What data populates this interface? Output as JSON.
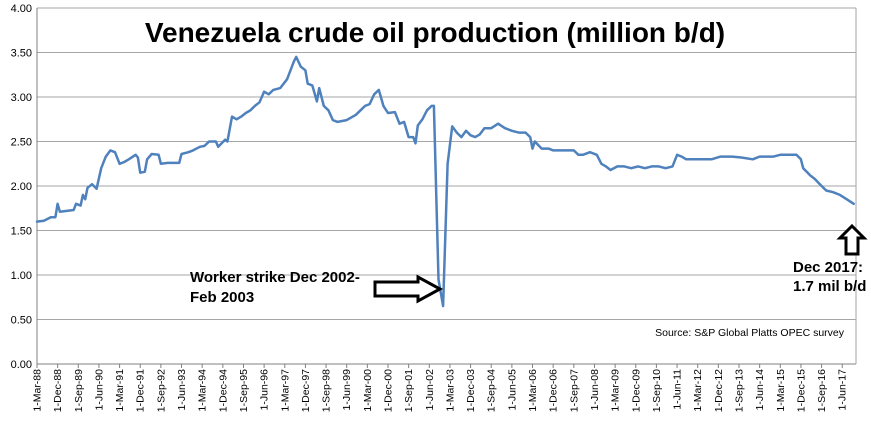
{
  "chart_data": {
    "type": "line",
    "title": "Venezuela crude oil production (million b/d)",
    "xlabel": "",
    "ylabel": "",
    "ylim": [
      0,
      4
    ],
    "yticks": [
      "0.00",
      "0.50",
      "1.00",
      "1.50",
      "2.00",
      "2.50",
      "3.00",
      "3.50",
      "4.00"
    ],
    "xlim": [
      "1988-03",
      "2017-12"
    ],
    "xticks": [
      "1-Mar-88",
      "1-Dec-88",
      "1-Sep-89",
      "1-Jun-90",
      "1-Mar-91",
      "1-Dec-91",
      "1-Sep-92",
      "1-Jun-93",
      "1-Mar-94",
      "1-Dec-94",
      "1-Sep-95",
      "1-Jun-96",
      "1-Mar-97",
      "1-Dec-97",
      "1-Sep-98",
      "1-Jun-99",
      "1-Mar-00",
      "1-Dec-00",
      "1-Sep-01",
      "1-Jun-02",
      "1-Mar-03",
      "1-Dec-03",
      "1-Sep-04",
      "1-Jun-05",
      "1-Mar-06",
      "1-Dec-06",
      "1-Sep-07",
      "1-Jun-08",
      "1-Mar-09",
      "1-Dec-09",
      "1-Sep-10",
      "1-Jun-11",
      "1-Mar-12",
      "1-Dec-12",
      "1-Sep-13",
      "1-Jun-14",
      "1-Mar-15",
      "1-Dec-15",
      "1-Sep-16",
      "1-Jun-17"
    ],
    "grid": true,
    "line_color": "#4f81bd",
    "series": [
      {
        "name": "",
        "points": [
          [
            "1988-03",
            1.6
          ],
          [
            "1988-06",
            1.61
          ],
          [
            "1988-09",
            1.65
          ],
          [
            "1988-11",
            1.65
          ],
          [
            "1988-12",
            1.8
          ],
          [
            "1989-01",
            1.71
          ],
          [
            "1989-04",
            1.72
          ],
          [
            "1989-07",
            1.73
          ],
          [
            "1989-08",
            1.8
          ],
          [
            "1989-10",
            1.78
          ],
          [
            "1989-11",
            1.9
          ],
          [
            "1989-12",
            1.85
          ],
          [
            "1990-01",
            1.98
          ],
          [
            "1990-03",
            2.02
          ],
          [
            "1990-05",
            1.97
          ],
          [
            "1990-07",
            2.2
          ],
          [
            "1990-09",
            2.33
          ],
          [
            "1990-11",
            2.4
          ],
          [
            "1991-01",
            2.38
          ],
          [
            "1991-03",
            2.25
          ],
          [
            "1991-05",
            2.27
          ],
          [
            "1991-07",
            2.3
          ],
          [
            "1991-10",
            2.35
          ],
          [
            "1991-11",
            2.32
          ],
          [
            "1991-12",
            2.15
          ],
          [
            "1992-02",
            2.16
          ],
          [
            "1992-03",
            2.3
          ],
          [
            "1992-05",
            2.36
          ],
          [
            "1992-08",
            2.35
          ],
          [
            "1992-09",
            2.25
          ],
          [
            "1992-12",
            2.26
          ],
          [
            "1993-05",
            2.26
          ],
          [
            "1993-06",
            2.36
          ],
          [
            "1993-09",
            2.38
          ],
          [
            "1993-11",
            2.4
          ],
          [
            "1994-02",
            2.44
          ],
          [
            "1994-04",
            2.45
          ],
          [
            "1994-06",
            2.5
          ],
          [
            "1994-09",
            2.5
          ],
          [
            "1994-10",
            2.44
          ],
          [
            "1995-01",
            2.52
          ],
          [
            "1995-02",
            2.5
          ],
          [
            "1995-04",
            2.78
          ],
          [
            "1995-06",
            2.75
          ],
          [
            "1995-08",
            2.78
          ],
          [
            "1995-10",
            2.82
          ],
          [
            "1995-12",
            2.85
          ],
          [
            "1996-02",
            2.9
          ],
          [
            "1996-04",
            2.94
          ],
          [
            "1996-06",
            3.06
          ],
          [
            "1996-08",
            3.03
          ],
          [
            "1996-10",
            3.08
          ],
          [
            "1997-01",
            3.1
          ],
          [
            "1997-04",
            3.2
          ],
          [
            "1997-07",
            3.4
          ],
          [
            "1997-08",
            3.45
          ],
          [
            "1997-10",
            3.34
          ],
          [
            "1997-12",
            3.3
          ],
          [
            "1998-01",
            3.15
          ],
          [
            "1998-03",
            3.13
          ],
          [
            "1998-05",
            2.95
          ],
          [
            "1998-06",
            3.1
          ],
          [
            "1998-08",
            2.9
          ],
          [
            "1998-10",
            2.85
          ],
          [
            "1998-12",
            2.74
          ],
          [
            "1999-02",
            2.72
          ],
          [
            "1999-06",
            2.74
          ],
          [
            "1999-10",
            2.8
          ],
          [
            "1999-12",
            2.85
          ],
          [
            "2000-02",
            2.9
          ],
          [
            "2000-04",
            2.92
          ],
          [
            "2000-06",
            3.03
          ],
          [
            "2000-08",
            3.08
          ],
          [
            "2000-10",
            2.9
          ],
          [
            "2000-12",
            2.82
          ],
          [
            "2001-03",
            2.83
          ],
          [
            "2001-05",
            2.7
          ],
          [
            "2001-07",
            2.72
          ],
          [
            "2001-09",
            2.55
          ],
          [
            "2001-11",
            2.55
          ],
          [
            "2001-12",
            2.48
          ],
          [
            "2002-01",
            2.68
          ],
          [
            "2002-03",
            2.75
          ],
          [
            "2002-05",
            2.85
          ],
          [
            "2002-07",
            2.9
          ],
          [
            "2002-08",
            2.9
          ],
          [
            "2002-10",
            0.95
          ],
          [
            "2002-12",
            0.65
          ],
          [
            "2003-02",
            2.25
          ],
          [
            "2003-04",
            2.67
          ],
          [
            "2003-06",
            2.6
          ],
          [
            "2003-08",
            2.55
          ],
          [
            "2003-10",
            2.62
          ],
          [
            "2003-12",
            2.57
          ],
          [
            "2004-02",
            2.55
          ],
          [
            "2004-04",
            2.58
          ],
          [
            "2004-06",
            2.65
          ],
          [
            "2004-09",
            2.65
          ],
          [
            "2004-12",
            2.7
          ],
          [
            "2005-03",
            2.65
          ],
          [
            "2005-06",
            2.62
          ],
          [
            "2005-09",
            2.6
          ],
          [
            "2005-12",
            2.6
          ],
          [
            "2006-02",
            2.55
          ],
          [
            "2006-03",
            2.42
          ],
          [
            "2006-04",
            2.5
          ],
          [
            "2006-07",
            2.42
          ],
          [
            "2006-10",
            2.42
          ],
          [
            "2006-12",
            2.4
          ],
          [
            "2007-04",
            2.4
          ],
          [
            "2007-09",
            2.4
          ],
          [
            "2007-11",
            2.35
          ],
          [
            "2008-01",
            2.35
          ],
          [
            "2008-04",
            2.38
          ],
          [
            "2008-07",
            2.35
          ],
          [
            "2008-09",
            2.25
          ],
          [
            "2008-11",
            2.22
          ],
          [
            "2009-01",
            2.18
          ],
          [
            "2009-04",
            2.22
          ],
          [
            "2009-07",
            2.22
          ],
          [
            "2009-10",
            2.2
          ],
          [
            "2010-01",
            2.22
          ],
          [
            "2010-04",
            2.2
          ],
          [
            "2010-07",
            2.22
          ],
          [
            "2010-10",
            2.22
          ],
          [
            "2011-01",
            2.2
          ],
          [
            "2011-04",
            2.22
          ],
          [
            "2011-06",
            2.35
          ],
          [
            "2011-08",
            2.33
          ],
          [
            "2011-10",
            2.3
          ],
          [
            "2012-03",
            2.3
          ],
          [
            "2012-09",
            2.3
          ],
          [
            "2013-01",
            2.33
          ],
          [
            "2013-06",
            2.33
          ],
          [
            "2013-10",
            2.32
          ],
          [
            "2014-03",
            2.3
          ],
          [
            "2014-06",
            2.33
          ],
          [
            "2014-12",
            2.33
          ],
          [
            "2015-03",
            2.35
          ],
          [
            "2015-07",
            2.35
          ],
          [
            "2015-10",
            2.35
          ],
          [
            "2015-12",
            2.3
          ],
          [
            "2016-01",
            2.2
          ],
          [
            "2016-04",
            2.12
          ],
          [
            "2016-06",
            2.08
          ],
          [
            "2016-09",
            2.0
          ],
          [
            "2016-11",
            1.95
          ],
          [
            "2017-02",
            1.93
          ],
          [
            "2017-05",
            1.9
          ],
          [
            "2017-08",
            1.85
          ],
          [
            "2017-11",
            1.8
          ]
        ]
      }
    ],
    "annotations": {
      "strike_line1": "Worker strike Dec 2002-",
      "strike_line2": "Feb 2003",
      "dec2017_line1": "Dec 2017:",
      "dec2017_line2": "1.7 mil b/d",
      "source": "Source: S&P Global Platts OPEC survey"
    }
  }
}
